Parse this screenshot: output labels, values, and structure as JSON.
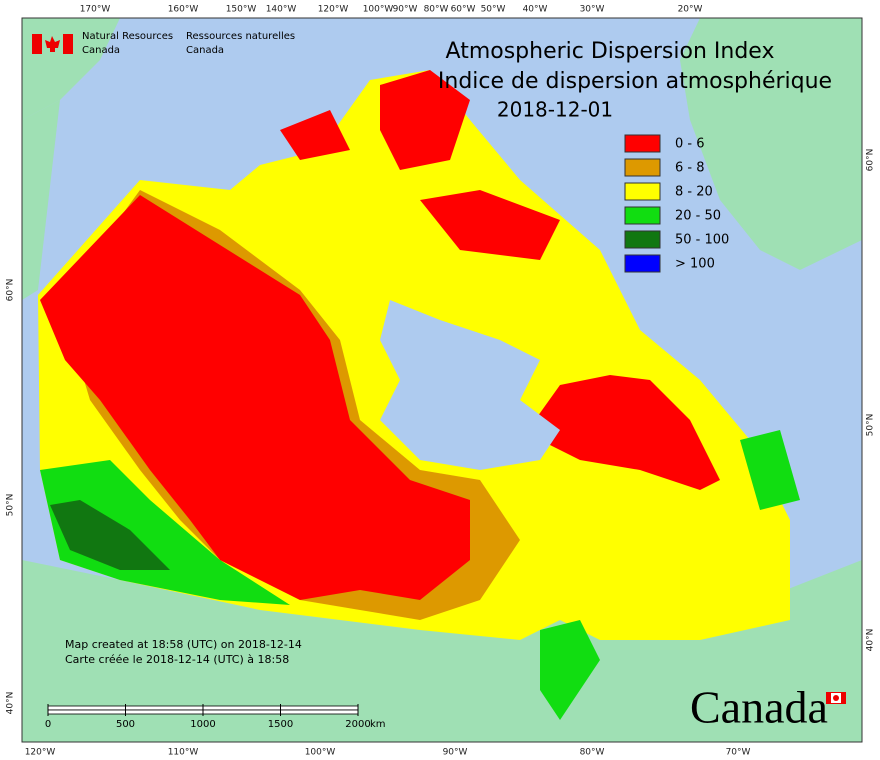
{
  "header": {
    "agency_en": [
      "Natural Resources",
      "Canada"
    ],
    "agency_fr": [
      "Ressources naturelles",
      "Canada"
    ]
  },
  "title": [
    "Atmospheric Dispersion Index",
    "Indice de dispersion atmosphérique",
    "2018-12-01"
  ],
  "legend": [
    {
      "label": "0 - 6",
      "color": "#ff0000"
    },
    {
      "label": "6 - 8",
      "color": "#dd9900"
    },
    {
      "label": "8 - 20",
      "color": "#ffff00"
    },
    {
      "label": "20 - 50",
      "color": "#11dd11"
    },
    {
      "label": "50 - 100",
      "color": "#117711"
    },
    {
      "label": "> 100",
      "color": "#0000ff"
    }
  ],
  "graticule": {
    "top": [
      "170°W",
      "160°W",
      "150°W",
      "140°W",
      "120°W",
      "100°W",
      "90°W",
      "80°W",
      "60°W",
      "50°W",
      "40°W",
      "30°W",
      "20°W"
    ],
    "bottom": [
      "120°W",
      "110°W",
      "100°W",
      "90°W",
      "80°W",
      "70°W"
    ],
    "left": [
      "60°N",
      "50°N",
      "40°N"
    ],
    "right": [
      "60°N",
      "50°N",
      "40°N"
    ]
  },
  "notes": [
    "Map created at 18:58 (UTC) on 2018-12-14",
    "Carte créée le 2018-12-14 (UTC) à 18:58"
  ],
  "scale_bar": {
    "ticks": [
      0,
      500,
      1000,
      1500,
      2000
    ],
    "unit": "km"
  },
  "wordmark": "Canada"
}
